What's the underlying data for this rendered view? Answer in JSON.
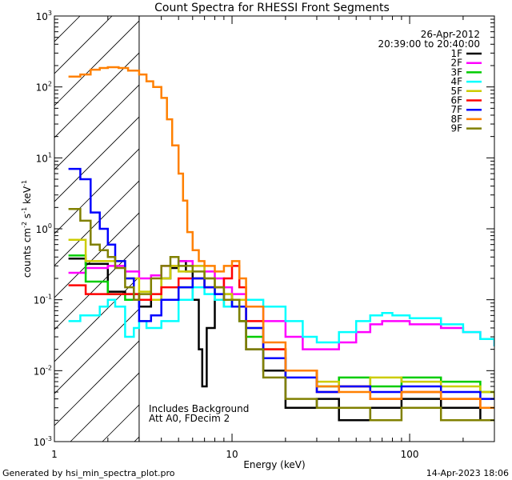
{
  "chart_data": {
    "type": "line",
    "title": "Count Spectra for RHESSI Front Segments",
    "xlabel": "Energy (keV)",
    "ylabel": "counts cm^-2 s^-1 keV^-1",
    "xscale": "log",
    "yscale": "log",
    "xlim": [
      1,
      300
    ],
    "ylim": [
      0.001,
      1000
    ],
    "x_ticks": [
      {
        "value": 1,
        "label": "1"
      },
      {
        "value": 10,
        "label": "10"
      },
      {
        "value": 100,
        "label": "100"
      }
    ],
    "y_ticks": [
      {
        "value": 1000,
        "label": "10^3"
      },
      {
        "value": 100,
        "label": "10^2"
      },
      {
        "value": 10,
        "label": "10^1"
      },
      {
        "value": 1,
        "label": "10^0"
      },
      {
        "value": 0.1,
        "label": "10^-1"
      },
      {
        "value": 0.01,
        "label": "10^-2"
      },
      {
        "value": 0.001,
        "label": "10^-3"
      }
    ],
    "date": "26-Apr-2012",
    "time_range": "20:39:00 to 20:40:00",
    "hatched_region": {
      "x_from": 1,
      "x_to": 3
    },
    "annotations": [
      "Includes Background",
      "Att A0, FDecim 2"
    ],
    "series": [
      {
        "name": "1F",
        "color": "#000000",
        "points": [
          [
            1.2,
            0.38
          ],
          [
            1.5,
            0.32
          ],
          [
            2.0,
            0.13
          ],
          [
            2.5,
            0.12
          ],
          [
            3.0,
            0.08
          ],
          [
            3.5,
            0.1
          ],
          [
            4.0,
            0.2
          ],
          [
            4.5,
            0.28
          ],
          [
            5.0,
            0.35
          ],
          [
            5.5,
            0.25
          ],
          [
            6.0,
            0.1
          ],
          [
            6.5,
            0.02
          ],
          [
            6.8,
            0.006
          ],
          [
            7.2,
            0.04
          ],
          [
            8.0,
            0.1
          ],
          [
            9.0,
            0.12
          ],
          [
            10,
            0.08
          ],
          [
            11,
            0.05
          ],
          [
            12,
            0.02
          ],
          [
            15,
            0.01
          ],
          [
            20,
            0.003
          ],
          [
            30,
            0.004
          ],
          [
            40,
            0.002
          ],
          [
            60,
            0.003
          ],
          [
            90,
            0.004
          ],
          [
            150,
            0.003
          ],
          [
            250,
            0.002
          ]
        ]
      },
      {
        "name": "2F",
        "color": "#ff00ff",
        "points": [
          [
            1.2,
            0.24
          ],
          [
            1.5,
            0.28
          ],
          [
            2.0,
            0.3
          ],
          [
            2.5,
            0.25
          ],
          [
            3.0,
            0.2
          ],
          [
            3.5,
            0.22
          ],
          [
            4.0,
            0.3
          ],
          [
            5.0,
            0.35
          ],
          [
            6.0,
            0.3
          ],
          [
            7.0,
            0.25
          ],
          [
            8.0,
            0.2
          ],
          [
            9.0,
            0.15
          ],
          [
            10,
            0.12
          ],
          [
            12,
            0.08
          ],
          [
            15,
            0.05
          ],
          [
            20,
            0.03
          ],
          [
            25,
            0.02
          ],
          [
            30,
            0.02
          ],
          [
            40,
            0.025
          ],
          [
            50,
            0.035
          ],
          [
            60,
            0.045
          ],
          [
            70,
            0.05
          ],
          [
            80,
            0.05
          ],
          [
            100,
            0.045
          ],
          [
            150,
            0.04
          ],
          [
            200,
            0.035
          ],
          [
            250,
            0.028
          ],
          [
            300,
            0.022
          ]
        ]
      },
      {
        "name": "3F",
        "color": "#00cc00",
        "points": [
          [
            1.2,
            0.42
          ],
          [
            1.5,
            0.18
          ],
          [
            2.0,
            0.12
          ],
          [
            2.5,
            0.1
          ],
          [
            3.0,
            0.1
          ],
          [
            3.5,
            0.1
          ],
          [
            4.0,
            0.1
          ],
          [
            5.0,
            0.15
          ],
          [
            6.0,
            0.2
          ],
          [
            7.0,
            0.15
          ],
          [
            8.0,
            0.1
          ],
          [
            9.0,
            0.08
          ],
          [
            10,
            0.1
          ],
          [
            11,
            0.05
          ],
          [
            12,
            0.03
          ],
          [
            15,
            0.02
          ],
          [
            20,
            0.01
          ],
          [
            30,
            0.006
          ],
          [
            40,
            0.008
          ],
          [
            60,
            0.006
          ],
          [
            90,
            0.008
          ],
          [
            150,
            0.007
          ],
          [
            250,
            0.005
          ]
        ]
      },
      {
        "name": "4F",
        "color": "#00ffff",
        "points": [
          [
            1.2,
            0.05
          ],
          [
            1.4,
            0.06
          ],
          [
            1.6,
            0.06
          ],
          [
            1.8,
            0.08
          ],
          [
            2.0,
            0.1
          ],
          [
            2.2,
            0.08
          ],
          [
            2.5,
            0.03
          ],
          [
            2.8,
            0.04
          ],
          [
            3.0,
            0.05
          ],
          [
            3.3,
            0.04
          ],
          [
            3.6,
            0.04
          ],
          [
            4.0,
            0.05
          ],
          [
            5.0,
            0.1
          ],
          [
            6.0,
            0.15
          ],
          [
            7.0,
            0.12
          ],
          [
            8.0,
            0.1
          ],
          [
            9.0,
            0.08
          ],
          [
            10,
            0.1
          ],
          [
            12,
            0.1
          ],
          [
            15,
            0.08
          ],
          [
            20,
            0.05
          ],
          [
            25,
            0.03
          ],
          [
            30,
            0.025
          ],
          [
            40,
            0.035
          ],
          [
            50,
            0.05
          ],
          [
            60,
            0.06
          ],
          [
            70,
            0.065
          ],
          [
            80,
            0.06
          ],
          [
            100,
            0.055
          ],
          [
            150,
            0.045
          ],
          [
            200,
            0.035
          ],
          [
            250,
            0.028
          ],
          [
            300,
            0.022
          ]
        ]
      },
      {
        "name": "5F",
        "color": "#cccc00",
        "points": [
          [
            1.2,
            0.7
          ],
          [
            1.5,
            0.35
          ],
          [
            2.0,
            0.35
          ],
          [
            2.5,
            0.2
          ],
          [
            3.0,
            0.13
          ],
          [
            3.5,
            0.1
          ],
          [
            4.0,
            0.2
          ],
          [
            4.5,
            0.3
          ],
          [
            5.0,
            0.25
          ],
          [
            6.0,
            0.3
          ],
          [
            7.0,
            0.2
          ],
          [
            8.0,
            0.15
          ],
          [
            9.0,
            0.12
          ],
          [
            10,
            0.1
          ],
          [
            12,
            0.04
          ],
          [
            15,
            0.02
          ],
          [
            20,
            0.01
          ],
          [
            30,
            0.007
          ],
          [
            40,
            0.006
          ],
          [
            60,
            0.008
          ],
          [
            90,
            0.007
          ],
          [
            150,
            0.006
          ],
          [
            250,
            0.005
          ],
          [
            300,
            0.004
          ]
        ]
      },
      {
        "name": "6F",
        "color": "#ff0000",
        "points": [
          [
            1.2,
            0.16
          ],
          [
            1.5,
            0.12
          ],
          [
            2.0,
            0.12
          ],
          [
            2.5,
            0.12
          ],
          [
            3.0,
            0.1
          ],
          [
            3.5,
            0.12
          ],
          [
            4.0,
            0.15
          ],
          [
            5.0,
            0.2
          ],
          [
            6.0,
            0.2
          ],
          [
            7.0,
            0.15
          ],
          [
            8.0,
            0.15
          ],
          [
            9.0,
            0.2
          ],
          [
            10,
            0.3
          ],
          [
            11,
            0.15
          ],
          [
            12,
            0.05
          ],
          [
            15,
            0.02
          ],
          [
            20,
            0.01
          ],
          [
            30,
            0.005
          ],
          [
            40,
            0.006
          ],
          [
            60,
            0.004
          ],
          [
            90,
            0.005
          ],
          [
            150,
            0.004
          ],
          [
            250,
            0.003
          ]
        ]
      },
      {
        "name": "7F",
        "color": "#0000ff",
        "points": [
          [
            1.2,
            7.0
          ],
          [
            1.4,
            5.0
          ],
          [
            1.6,
            1.7
          ],
          [
            1.8,
            1.0
          ],
          [
            2.0,
            0.6
          ],
          [
            2.2,
            0.35
          ],
          [
            2.5,
            0.2
          ],
          [
            2.8,
            0.1
          ],
          [
            3.0,
            0.05
          ],
          [
            3.5,
            0.06
          ],
          [
            4.0,
            0.1
          ],
          [
            5.0,
            0.15
          ],
          [
            6.0,
            0.2
          ],
          [
            7.0,
            0.15
          ],
          [
            8.0,
            0.12
          ],
          [
            9.0,
            0.1
          ],
          [
            10,
            0.08
          ],
          [
            12,
            0.04
          ],
          [
            15,
            0.015
          ],
          [
            20,
            0.008
          ],
          [
            30,
            0.005
          ],
          [
            40,
            0.006
          ],
          [
            60,
            0.005
          ],
          [
            90,
            0.006
          ],
          [
            150,
            0.005
          ],
          [
            250,
            0.004
          ]
        ]
      },
      {
        "name": "8F",
        "color": "#ff8000",
        "points": [
          [
            1.2,
            140
          ],
          [
            1.4,
            150
          ],
          [
            1.6,
            175
          ],
          [
            1.8,
            185
          ],
          [
            2.0,
            190
          ],
          [
            2.3,
            185
          ],
          [
            2.6,
            170
          ],
          [
            3.0,
            150
          ],
          [
            3.3,
            120
          ],
          [
            3.6,
            100
          ],
          [
            4.0,
            70
          ],
          [
            4.3,
            35
          ],
          [
            4.6,
            15
          ],
          [
            5.0,
            6
          ],
          [
            5.3,
            2.5
          ],
          [
            5.6,
            0.9
          ],
          [
            6.0,
            0.5
          ],
          [
            6.5,
            0.35
          ],
          [
            7.0,
            0.3
          ],
          [
            8.0,
            0.25
          ],
          [
            9.0,
            0.3
          ],
          [
            10,
            0.35
          ],
          [
            11,
            0.2
          ],
          [
            12,
            0.08
          ],
          [
            15,
            0.025
          ],
          [
            20,
            0.01
          ],
          [
            30,
            0.006
          ],
          [
            40,
            0.005
          ],
          [
            60,
            0.004
          ],
          [
            90,
            0.005
          ],
          [
            150,
            0.004
          ],
          [
            250,
            0.003
          ]
        ]
      },
      {
        "name": "9F",
        "color": "#808000",
        "points": [
          [
            1.2,
            1.9
          ],
          [
            1.4,
            1.3
          ],
          [
            1.6,
            0.6
          ],
          [
            1.8,
            0.5
          ],
          [
            2.0,
            0.4
          ],
          [
            2.2,
            0.28
          ],
          [
            2.5,
            0.15
          ],
          [
            2.8,
            0.1
          ],
          [
            3.0,
            0.12
          ],
          [
            3.5,
            0.2
          ],
          [
            4.0,
            0.3
          ],
          [
            4.5,
            0.4
          ],
          [
            5.0,
            0.3
          ],
          [
            6.0,
            0.25
          ],
          [
            7.0,
            0.2
          ],
          [
            8.0,
            0.15
          ],
          [
            9.0,
            0.1
          ],
          [
            10,
            0.1
          ],
          [
            11,
            0.05
          ],
          [
            12,
            0.02
          ],
          [
            15,
            0.008
          ],
          [
            20,
            0.004
          ],
          [
            30,
            0.003
          ],
          [
            40,
            0.003
          ],
          [
            60,
            0.002
          ],
          [
            90,
            0.003
          ],
          [
            150,
            0.002
          ],
          [
            250,
            0.002
          ]
        ]
      }
    ]
  },
  "footer": {
    "generated_by": "Generated by hsi_min_spectra_plot.pro",
    "timestamp": "14-Apr-2023 18:06"
  }
}
